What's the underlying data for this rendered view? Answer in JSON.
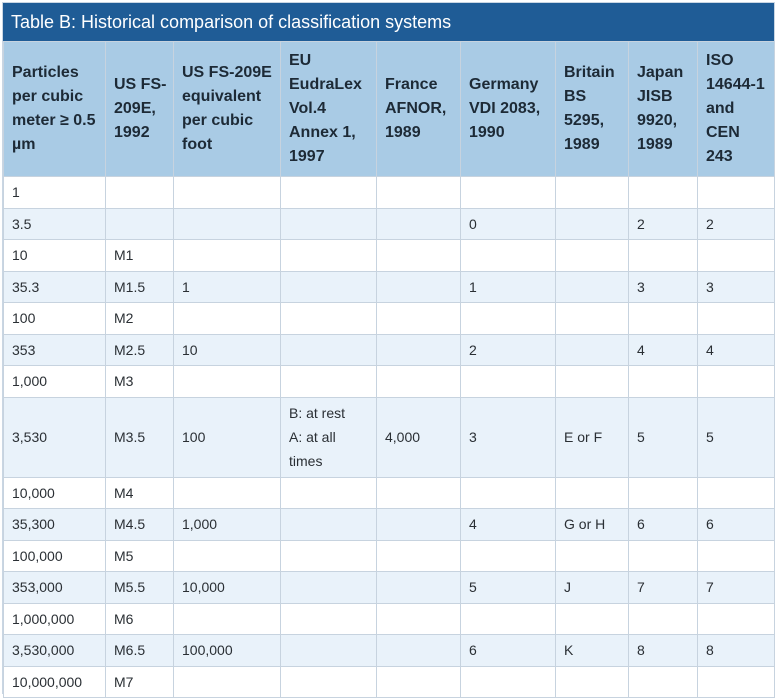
{
  "title": "Table B: Historical comparison of classification systems",
  "headers": [
    "Particles per cubic meter ≥ 0.5 µm",
    "US FS-209E, 1992",
    "US FS-209E equivalent per cubic foot",
    "EU EudraLex Vol.4 Annex 1, 1997",
    "France AFNOR, 1989",
    "Germany VDI 2083, 1990",
    "Britain BS 5295, 1989",
    "Japan JISB 9920, 1989",
    "ISO 14644-1 and CEN 243"
  ],
  "rows": [
    [
      "1",
      "",
      "",
      "",
      "",
      "",
      "",
      "",
      ""
    ],
    [
      "3.5",
      "",
      "",
      "",
      "",
      "0",
      "",
      "2",
      "2"
    ],
    [
      "10",
      "M1",
      "",
      "",
      "",
      "",
      "",
      "",
      ""
    ],
    [
      "35.3",
      "M1.5",
      "1",
      "",
      "",
      "1",
      "",
      "3",
      "3"
    ],
    [
      "100",
      "M2",
      "",
      "",
      "",
      "",
      "",
      "",
      ""
    ],
    [
      "353",
      "M2.5",
      "10",
      "",
      "",
      "2",
      "",
      "4",
      "4"
    ],
    [
      "1,000",
      "M3",
      "",
      "",
      "",
      "",
      "",
      "",
      ""
    ],
    [
      "3,530",
      "M3.5",
      "100",
      [
        "B: at rest",
        "A: at all",
        "times"
      ],
      "4,000",
      "3",
      "E or F",
      "5",
      "5"
    ],
    [
      "10,000",
      "M4",
      "",
      "",
      "",
      "",
      "",
      "",
      ""
    ],
    [
      "35,300",
      "M4.5",
      "1,000",
      "",
      "",
      "4",
      "G or H",
      "6",
      "6"
    ],
    [
      "100,000",
      "M5",
      "",
      "",
      "",
      "",
      "",
      "",
      ""
    ],
    [
      "353,000",
      "M5.5",
      "10,000",
      "",
      "",
      "5",
      "J",
      "7",
      "7"
    ],
    [
      "1,000,000",
      "M6",
      "",
      "",
      "",
      "",
      "",
      "",
      ""
    ],
    [
      "3,530,000",
      "M6.5",
      "100,000",
      "",
      "",
      "6",
      "K",
      "8",
      "8"
    ],
    [
      "10,000,000",
      "M7",
      "",
      "",
      "",
      "",
      "",
      "",
      ""
    ]
  ]
}
